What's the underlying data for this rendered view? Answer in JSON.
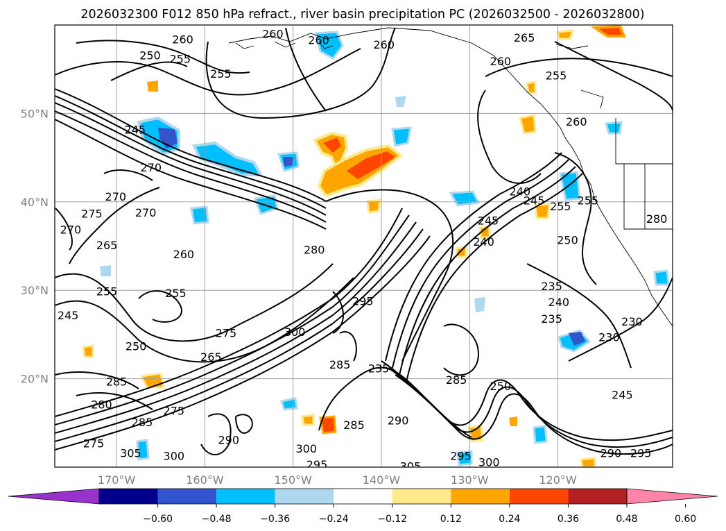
{
  "chart_data": {
    "type": "contour_map",
    "title": "2026032300 F012 850 hPa refract., river basin precipitation PC (2026032500 - 2026032800)",
    "region": "North Pacific / Northeast Pacific",
    "xlim": [
      -177,
      -107
    ],
    "ylim": [
      10,
      60
    ],
    "grid": true,
    "x_ticks": [
      {
        "value": -170,
        "label": "170°W"
      },
      {
        "value": -160,
        "label": "160°W"
      },
      {
        "value": -150,
        "label": "150°W"
      },
      {
        "value": -140,
        "label": "140°W"
      },
      {
        "value": -130,
        "label": "130°W"
      },
      {
        "value": -120,
        "label": "120°W"
      }
    ],
    "y_ticks": [
      {
        "value": 20,
        "label": "20°N"
      },
      {
        "value": 30,
        "label": "30°N"
      },
      {
        "value": 40,
        "label": "40°N"
      },
      {
        "value": 50,
        "label": "50°N"
      }
    ],
    "colorbar": {
      "orientation": "horizontal",
      "extend": "both",
      "ticks": [
        "−0.60",
        "−0.48",
        "−0.36",
        "−0.24",
        "−0.12",
        "0.12",
        "0.24",
        "0.36",
        "0.48",
        "0.60"
      ],
      "bins": [
        {
          "color": "#9932cc",
          "range": "< -0.60"
        },
        {
          "color": "#00008b",
          "range": "-0.60 to -0.48"
        },
        {
          "color": "#3355cc",
          "range": "-0.48 to -0.36"
        },
        {
          "color": "#00bfff",
          "range": "-0.36 to -0.24"
        },
        {
          "color": "#add8f0",
          "range": "-0.24 to -0.12"
        },
        {
          "color": "#ffffff",
          "range": "-0.12 to 0.12"
        },
        {
          "color": "#ffe98a",
          "range": "0.12 to 0.24"
        },
        {
          "color": "#ffa500",
          "range": "0.24 to 0.36"
        },
        {
          "color": "#ff4500",
          "range": "0.36 to 0.48"
        },
        {
          "color": "#b22222",
          "range": "0.48 to 0.60"
        },
        {
          "color": "#ff85a8",
          "range": "> 0.60"
        }
      ]
    },
    "contour_labels": [
      {
        "lon": -162.5,
        "lat": 58.4,
        "text": "260"
      },
      {
        "lon": -166.2,
        "lat": 56.6,
        "text": "250"
      },
      {
        "lon": -162.8,
        "lat": 56.2,
        "text": "255"
      },
      {
        "lon": -158.2,
        "lat": 54.5,
        "text": "255"
      },
      {
        "lon": -152.3,
        "lat": 59.0,
        "text": "260"
      },
      {
        "lon": -147.1,
        "lat": 58.3,
        "text": "260"
      },
      {
        "lon": -139.7,
        "lat": 57.8,
        "text": "260"
      },
      {
        "lon": -126.5,
        "lat": 55.9,
        "text": "260"
      },
      {
        "lon": -123.8,
        "lat": 58.6,
        "text": "265"
      },
      {
        "lon": -120.2,
        "lat": 54.3,
        "text": "255"
      },
      {
        "lon": -117.9,
        "lat": 49.1,
        "text": "260"
      },
      {
        "lon": -167.9,
        "lat": 48.2,
        "text": "245"
      },
      {
        "lon": -166.1,
        "lat": 43.9,
        "text": "270"
      },
      {
        "lon": -170.1,
        "lat": 40.6,
        "text": "270"
      },
      {
        "lon": -172.8,
        "lat": 38.7,
        "text": "275"
      },
      {
        "lon": -166.7,
        "lat": 38.8,
        "text": "270"
      },
      {
        "lon": -175.2,
        "lat": 36.9,
        "text": "270"
      },
      {
        "lon": -171.1,
        "lat": 35.1,
        "text": "265"
      },
      {
        "lon": -162.4,
        "lat": 34.1,
        "text": "260"
      },
      {
        "lon": -163.3,
        "lat": 29.7,
        "text": "255"
      },
      {
        "lon": -171.1,
        "lat": 29.9,
        "text": "255"
      },
      {
        "lon": -175.5,
        "lat": 27.2,
        "text": "245"
      },
      {
        "lon": -167.8,
        "lat": 23.7,
        "text": "250"
      },
      {
        "lon": -157.6,
        "lat": 25.2,
        "text": "275"
      },
      {
        "lon": -159.3,
        "lat": 22.5,
        "text": "265"
      },
      {
        "lon": -147.6,
        "lat": 34.6,
        "text": "280"
      },
      {
        "lon": -142.1,
        "lat": 28.8,
        "text": "295"
      },
      {
        "lon": -149.8,
        "lat": 25.3,
        "text": "300"
      },
      {
        "lon": -144.7,
        "lat": 21.6,
        "text": "285"
      },
      {
        "lon": -140.3,
        "lat": 21.2,
        "text": "235"
      },
      {
        "lon": -170.0,
        "lat": 19.7,
        "text": "285"
      },
      {
        "lon": -171.7,
        "lat": 17.1,
        "text": "280"
      },
      {
        "lon": -167.1,
        "lat": 15.1,
        "text": "285"
      },
      {
        "lon": -163.5,
        "lat": 16.4,
        "text": "275"
      },
      {
        "lon": -172.6,
        "lat": 12.7,
        "text": "275"
      },
      {
        "lon": -168.4,
        "lat": 11.6,
        "text": "305"
      },
      {
        "lon": -163.5,
        "lat": 11.3,
        "text": "300"
      },
      {
        "lon": -157.3,
        "lat": 13.1,
        "text": "290"
      },
      {
        "lon": -148.5,
        "lat": 12.1,
        "text": "300"
      },
      {
        "lon": -143.1,
        "lat": 14.8,
        "text": "285"
      },
      {
        "lon": -138.1,
        "lat": 15.3,
        "text": "290"
      },
      {
        "lon": -131.5,
        "lat": 19.9,
        "text": "285"
      },
      {
        "lon": -126.5,
        "lat": 19.2,
        "text": "250"
      },
      {
        "lon": -131.0,
        "lat": 11.3,
        "text": "295"
      },
      {
        "lon": -127.8,
        "lat": 10.6,
        "text": "300"
      },
      {
        "lon": -136.7,
        "lat": 10.1,
        "text": "305"
      },
      {
        "lon": -147.3,
        "lat": 10.3,
        "text": "295"
      },
      {
        "lon": -114.0,
        "lat": 11.6,
        "text": "290"
      },
      {
        "lon": -110.6,
        "lat": 11.6,
        "text": "295"
      },
      {
        "lon": -112.7,
        "lat": 18.2,
        "text": "245"
      },
      {
        "lon": -114.2,
        "lat": 24.7,
        "text": "230"
      },
      {
        "lon": -111.6,
        "lat": 26.5,
        "text": "230"
      },
      {
        "lon": -120.7,
        "lat": 26.8,
        "text": "235"
      },
      {
        "lon": -119.9,
        "lat": 28.7,
        "text": "240"
      },
      {
        "lon": -120.7,
        "lat": 30.5,
        "text": "235"
      },
      {
        "lon": -128.4,
        "lat": 35.5,
        "text": "240"
      },
      {
        "lon": -127.9,
        "lat": 37.9,
        "text": "245"
      },
      {
        "lon": -124.3,
        "lat": 41.2,
        "text": "240"
      },
      {
        "lon": -122.7,
        "lat": 40.2,
        "text": "245"
      },
      {
        "lon": -119.7,
        "lat": 39.5,
        "text": "255"
      },
      {
        "lon": -116.6,
        "lat": 40.2,
        "text": "255"
      },
      {
        "lon": -118.9,
        "lat": 35.7,
        "text": "250"
      },
      {
        "lon": -108.8,
        "lat": 38.1,
        "text": "280"
      }
    ]
  }
}
